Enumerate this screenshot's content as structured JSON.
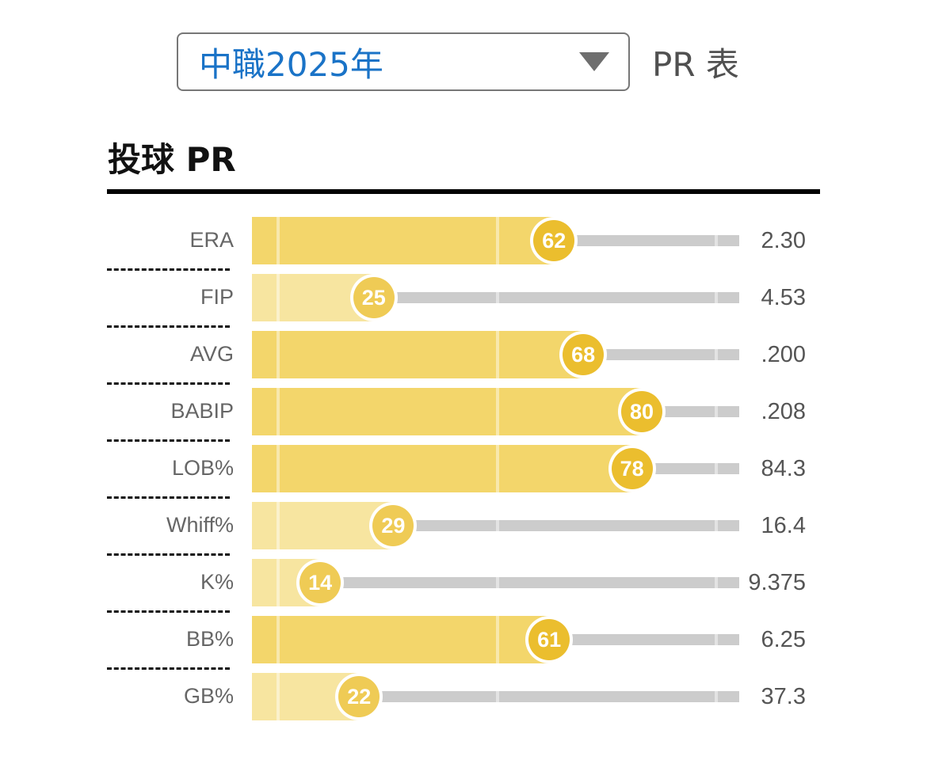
{
  "header": {
    "select_value": "中職2025年",
    "select_icon": "triangle-down-icon",
    "table_label": "PR 表"
  },
  "section": {
    "title": "投球 PR"
  },
  "colors": {
    "bar_high": "#f3d66b",
    "bar_low": "#f7e5a0",
    "badge_high": "#ebbe2e",
    "badge_low": "#efcb55",
    "track": "#cccccc",
    "select_text": "#1a73c7"
  },
  "rows": [
    {
      "label": "ERA",
      "pr": "62",
      "value": "2.30"
    },
    {
      "label": "FIP",
      "pr": "25",
      "value": "4.53"
    },
    {
      "label": "AVG",
      "pr": "68",
      "value": ".200"
    },
    {
      "label": "BABIP",
      "pr": "80",
      "value": ".208"
    },
    {
      "label": "LOB%",
      "pr": "78",
      "value": "84.3"
    },
    {
      "label": "Whiff%",
      "pr": "29",
      "value": "16.4"
    },
    {
      "label": "K%",
      "pr": "14",
      "value": "9.375"
    },
    {
      "label": "BB%",
      "pr": "61",
      "value": "6.25"
    },
    {
      "label": "GB%",
      "pr": "22",
      "value": "37.3"
    }
  ],
  "chart_data": {
    "type": "bar",
    "orientation": "horizontal",
    "title": "投球 PR",
    "categories": [
      "ERA",
      "FIP",
      "AVG",
      "BABIP",
      "LOB%",
      "Whiff%",
      "K%",
      "BB%",
      "GB%"
    ],
    "series": [
      {
        "name": "PR",
        "values": [
          62,
          25,
          68,
          80,
          78,
          29,
          14,
          61,
          22
        ]
      }
    ],
    "raw_values": [
      "2.30",
      "4.53",
      ".200",
      ".208",
      "84.3",
      "16.4",
      "9.375",
      "6.25",
      "37.3"
    ],
    "xlim": [
      0,
      100
    ],
    "gridlines": [
      5,
      50,
      95
    ],
    "xlabel": "",
    "ylabel": ""
  }
}
